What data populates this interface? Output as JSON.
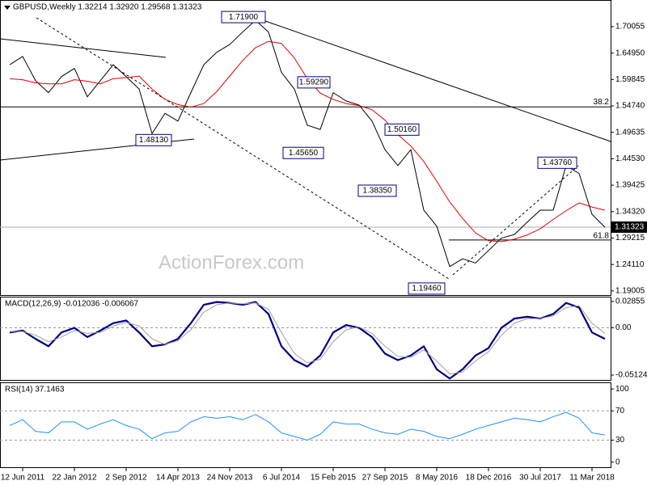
{
  "chart_data": [
    {
      "type": "line",
      "title": "GBPUSD,Weekly 1.32214 1.32920 1.29568 1.31323",
      "watermark": "ActionForex.com",
      "categories": [
        null,
        "12 Jun 2011",
        null,
        null,
        null,
        "22 Jan 2012",
        null,
        null,
        null,
        "2 Sep 2012",
        null,
        null,
        null,
        "14 Apr 2013",
        null,
        null,
        null,
        "24 Nov 2013",
        null,
        null,
        null,
        "6 Jul 2014",
        null,
        null,
        null,
        "15 Feb 2015",
        null,
        null,
        null,
        "27 Sep 2015",
        null,
        null,
        null,
        "8 May 2016",
        null,
        null,
        null,
        "18 Dec 2016",
        null,
        null,
        null,
        "30 Jul 2017",
        null,
        null,
        null,
        "11 Mar 2018",
        null
      ],
      "series": [
        {
          "color": "#000000",
          "values": [
            1.627,
            1.643,
            1.596,
            1.573,
            1.604,
            1.62,
            1.565,
            1.596,
            1.627,
            1.604,
            1.58,
            1.494,
            1.533,
            1.518,
            1.573,
            1.627,
            1.651,
            1.666,
            1.69,
            1.713,
            1.69,
            1.612,
            1.58,
            1.51,
            1.502,
            1.573,
            1.557,
            1.549,
            1.518,
            1.463,
            1.432,
            1.463,
            1.346,
            1.315,
            1.237,
            1.252,
            1.244,
            1.268,
            1.292,
            1.299,
            1.323,
            1.346,
            1.346,
            1.432,
            1.417,
            1.338,
            1.313
          ]
        },
        {
          "color": "#e00000",
          "values": [
            1.6,
            1.598,
            1.592,
            1.59,
            1.59,
            1.598,
            1.595,
            1.59,
            1.6,
            1.602,
            1.605,
            1.58,
            1.56,
            1.55,
            1.545,
            1.552,
            1.575,
            1.605,
            1.635,
            1.66,
            1.672,
            1.668,
            1.64,
            1.6,
            1.572,
            1.56,
            1.552,
            1.548,
            1.54,
            1.52,
            1.492,
            1.47,
            1.44,
            1.402,
            1.362,
            1.33,
            1.302,
            1.287,
            1.285,
            1.29,
            1.298,
            1.31,
            1.328,
            1.345,
            1.36,
            1.352,
            1.346
          ]
        }
      ],
      "ylim": [
        1.182,
        1.752
      ],
      "yticks": [
        1.70055,
        {
          "value": 1.6495,
          "label": "1.64950"
        },
        1.59845,
        {
          "value": 1.5474,
          "label": "1.54740"
        },
        1.49635,
        {
          "value": 1.4453,
          "label": "1.44530"
        },
        1.39425,
        {
          "value": 1.3432,
          "label": "1.34320"
        },
        1.29215,
        {
          "value": 1.2411,
          "label": "1.24110"
        },
        1.19005
      ],
      "last_price": 1.31323,
      "annotations": [
        {
          "value": 1.719,
          "label": "1.71900"
        },
        {
          "value": 1.5929,
          "label": "1.59290"
        },
        {
          "value": 1.4565,
          "label": "1.45650"
        },
        {
          "value": 1.5016,
          "label": "1.50160"
        },
        {
          "value": 1.3835,
          "label": "1.38350"
        },
        {
          "value": 1.4813,
          "label": "1.48130"
        },
        {
          "value": 1.4376,
          "label": "1.43760"
        },
        {
          "value": 1.1946,
          "label": "1.19460"
        }
      ],
      "levels": [
        {
          "value": 1.5455,
          "label": "38.2"
        },
        {
          "value": 1.2884,
          "label": "61.8"
        }
      ]
    },
    {
      "type": "line",
      "title": "MACD(12,26,9) -0.012036 -0.006067",
      "series": [
        {
          "color": "#000080",
          "values": [
            -0.005,
            -0.003,
            -0.012,
            -0.02,
            -0.005,
            0.0,
            -0.01,
            -0.003,
            0.005,
            0.008,
            -0.005,
            -0.02,
            -0.018,
            -0.012,
            0.005,
            0.025,
            0.028,
            0.027,
            0.025,
            0.028,
            0.015,
            -0.02,
            -0.035,
            -0.042,
            -0.03,
            -0.005,
            0.003,
            0.0,
            -0.01,
            -0.028,
            -0.035,
            -0.03,
            -0.02,
            -0.045,
            -0.055,
            -0.045,
            -0.03,
            -0.022,
            0.0,
            0.01,
            0.012,
            0.01,
            0.015,
            0.027,
            0.022,
            -0.005,
            -0.012
          ]
        },
        {
          "color": "#a0a0a0",
          "values": [
            -0.004,
            -0.004,
            -0.008,
            -0.015,
            -0.01,
            -0.003,
            -0.006,
            -0.005,
            0.002,
            0.006,
            0.002,
            -0.012,
            -0.018,
            -0.014,
            -0.002,
            0.017,
            0.025,
            0.027,
            0.026,
            0.027,
            0.02,
            -0.005,
            -0.028,
            -0.038,
            -0.034,
            -0.015,
            -0.002,
            0.001,
            -0.006,
            -0.02,
            -0.031,
            -0.032,
            -0.024,
            -0.036,
            -0.05,
            -0.048,
            -0.036,
            -0.026,
            -0.008,
            0.005,
            0.01,
            0.01,
            0.013,
            0.022,
            0.024,
            0.005,
            -0.006
          ]
        }
      ],
      "ylim": [
        -0.0565,
        0.0338
      ],
      "yticks": [
        0.02855,
        {
          "value": 0,
          "label": "0.00"
        },
        -0.05124
      ],
      "levels": [
        0
      ]
    },
    {
      "type": "line",
      "title": "RSI(14) 37.1463",
      "series": [
        {
          "color": "#1e90ff",
          "values": [
            50,
            58,
            42,
            40,
            55,
            55,
            45,
            52,
            58,
            50,
            45,
            32,
            40,
            42,
            55,
            62,
            60,
            62,
            58,
            65,
            55,
            40,
            35,
            30,
            38,
            55,
            52,
            52,
            45,
            40,
            38,
            45,
            42,
            35,
            32,
            38,
            45,
            50,
            55,
            60,
            58,
            55,
            62,
            68,
            60,
            40,
            37
          ]
        }
      ],
      "ylim": [
        -7,
        109
      ],
      "yticks": [
        100,
        70,
        30,
        0
      ],
      "levels": [
        70,
        30
      ]
    }
  ]
}
